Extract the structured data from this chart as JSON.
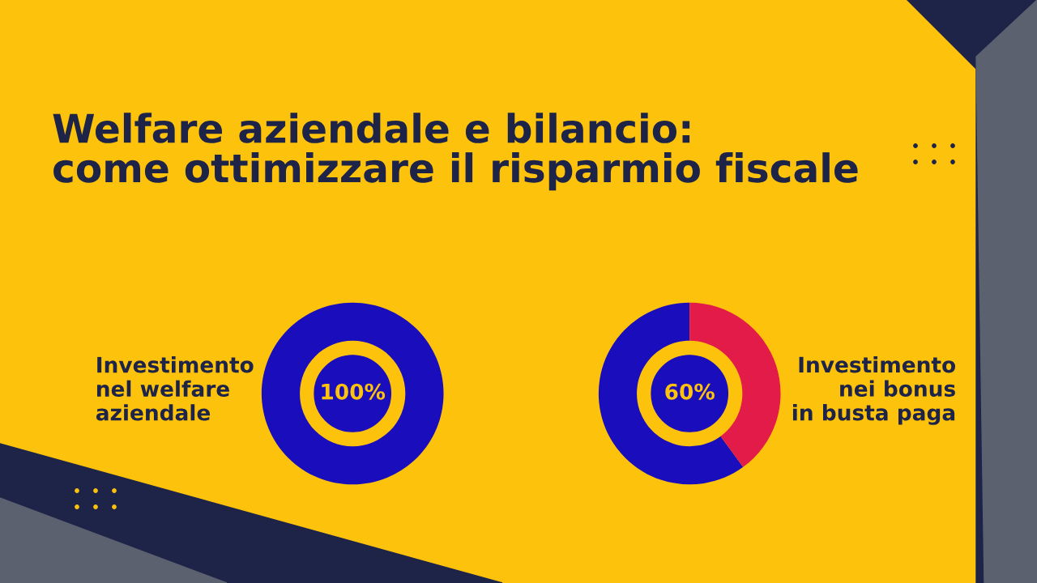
{
  "chart_data": [
    {
      "type": "other",
      "title": "Welfare aziendale e bilancio:\ncome ottimizzare il risparmio fiscale"
    },
    {
      "type": "donut",
      "title": "Investimento\nnel welfare\naziendale",
      "categories": [
        null
      ],
      "values": [
        100
      ],
      "colors": [
        "#1a0dbb"
      ],
      "value_labels": [
        "100%"
      ]
    },
    {
      "type": "donut",
      "title": "Investimento\nnei bonus\nin busta paga",
      "categories": [
        null,
        null
      ],
      "values": [
        60,
        40
      ],
      "colors": [
        "#1a0dbb",
        "#e31b48"
      ],
      "annotations": [
        "60%"
      ]
    }
  ]
}
